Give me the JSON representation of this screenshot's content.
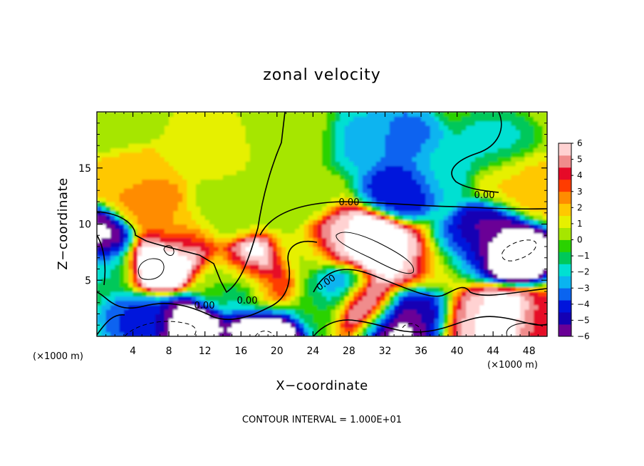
{
  "chart_data": {
    "type": "heatmap",
    "title": "zonal velocity",
    "xlabel": "X−coordinate",
    "ylabel": "Z−coordinate",
    "x_unit_left": "(×1000 m)",
    "x_unit_right": "(×1000 m)",
    "xlim": [
      0,
      50
    ],
    "ylim": [
      0,
      20
    ],
    "xticks": [
      "4",
      "8",
      "12",
      "16",
      "20",
      "24",
      "28",
      "32",
      "36",
      "40",
      "44",
      "48"
    ],
    "xtick_values": [
      4,
      8,
      12,
      16,
      20,
      24,
      28,
      32,
      36,
      40,
      44,
      48
    ],
    "yticks": [
      "5",
      "10",
      "15"
    ],
    "ytick_values": [
      5,
      10,
      15
    ],
    "colorbar": {
      "range": [
        -6,
        6
      ],
      "labels": [
        "6",
        "5",
        "4",
        "3",
        "2",
        "1",
        "0",
        "−1",
        "−2",
        "−3",
        "−4",
        "−5",
        "−6"
      ],
      "label_values": [
        6,
        5,
        4,
        3,
        2,
        1,
        0,
        -1,
        -2,
        -3,
        -4,
        -5,
        -6
      ],
      "colors": [
        "#6a0096",
        "#1400b4",
        "#0014dc",
        "#0a64f0",
        "#0ab4f0",
        "#00e0d2",
        "#00c85a",
        "#2ad200",
        "#a6e600",
        "#e6f000",
        "#ffc800",
        "#ff8c00",
        "#ff3c00",
        "#e60a28",
        "#f08c8c",
        "#ffd2d2"
      ]
    },
    "contour_interval_text": "CONTOUR INTERVAL = 1.000E+01",
    "contour_labels": [
      "0.00",
      "0.00",
      "0.00",
      "0.00",
      "0.00",
      "0.00"
    ],
    "field_features": [
      {
        "x": 2,
        "z": 19,
        "u": 0.4
      },
      {
        "x": 6,
        "z": 11.5,
        "u": 2.8
      },
      {
        "x": 4,
        "z": 14,
        "u": 2.2
      },
      {
        "x": 12,
        "z": 17,
        "u": 1.0
      },
      {
        "x": 22,
        "z": 18,
        "u": 0.3
      },
      {
        "x": 30,
        "z": 17.5,
        "u": -2.5
      },
      {
        "x": 34,
        "z": 17.5,
        "u": -3.5
      },
      {
        "x": 34,
        "z": 13.5,
        "u": -4.5
      },
      {
        "x": 38,
        "z": 15,
        "u": -2.0
      },
      {
        "x": 44,
        "z": 17,
        "u": -1.8
      },
      {
        "x": 46,
        "z": 14,
        "u": 1.5
      },
      {
        "x": 48,
        "z": 13,
        "u": 2.0
      },
      {
        "x": 22,
        "z": 12,
        "u": 0.3
      },
      {
        "x": 9,
        "z": 9,
        "u": 1.5
      },
      {
        "x": 6.5,
        "z": 6.5,
        "u": 9.0
      },
      {
        "x": 9,
        "z": 7.5,
        "u": 7.0
      },
      {
        "x": 0.5,
        "z": 8.5,
        "u": -6.5
      },
      {
        "x": 1.5,
        "z": 6,
        "u": -1.5
      },
      {
        "x": 10,
        "z": 1,
        "u": -7.0
      },
      {
        "x": 5,
        "z": 1.5,
        "u": -4.0
      },
      {
        "x": 14,
        "z": 5,
        "u": 0.3
      },
      {
        "x": 17.5,
        "z": 6,
        "u": 8.0
      },
      {
        "x": 19,
        "z": 4,
        "u": 6.0
      },
      {
        "x": 17,
        "z": 4.5,
        "u": -5.5
      },
      {
        "x": 19,
        "z": 1,
        "u": -8.0
      },
      {
        "x": 23,
        "z": 7,
        "u": 0.5
      },
      {
        "x": 30,
        "z": 8,
        "u": 8.5
      },
      {
        "x": 34,
        "z": 6.5,
        "u": 6.5
      },
      {
        "x": 27,
        "z": 8.5,
        "u": 5.5
      },
      {
        "x": 30,
        "z": 3,
        "u": 8.0
      },
      {
        "x": 27,
        "z": 4.5,
        "u": -4.0
      },
      {
        "x": 33,
        "z": 1.5,
        "u": -7.0
      },
      {
        "x": 36,
        "z": 2.5,
        "u": -5.0
      },
      {
        "x": 38,
        "z": 6,
        "u": 1.5
      },
      {
        "x": 41,
        "z": 7.5,
        "u": -4.5
      },
      {
        "x": 46,
        "z": 7.5,
        "u": -8.5
      },
      {
        "x": 44,
        "z": 9.5,
        "u": -5.5
      },
      {
        "x": 45,
        "z": 1.5,
        "u": 8.0
      },
      {
        "x": 42,
        "z": 2,
        "u": 5.5
      },
      {
        "x": 48.5,
        "z": 1,
        "u": 4.0
      },
      {
        "x": 24,
        "z": 3,
        "u": -0.5
      },
      {
        "x": 14,
        "z": 11,
        "u": 0.5
      }
    ]
  }
}
